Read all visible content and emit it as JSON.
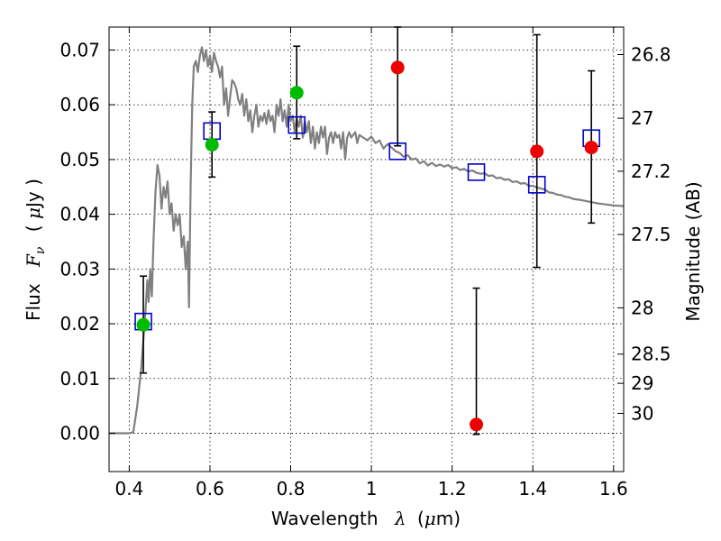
{
  "chart_data": {
    "type": "scatter",
    "xlabel": {
      "text": "Wavelength",
      "symbol": "λ",
      "unit_prefix": "(",
      "unit_greek": "μ",
      "unit_rest": "m)"
    },
    "ylabel_left": {
      "text": "Flux",
      "symbol": "F",
      "subscript": "ν",
      "unit_prefix": "( ",
      "unit_greek": "μ",
      "unit_rest": "Jy )"
    },
    "ylabel_right": "Magnitude (AB)",
    "xlim": [
      0.35,
      1.625
    ],
    "ylim": [
      -0.007,
      0.0742
    ],
    "x_ticks": [
      {
        "value": 0.4,
        "label": "0.4"
      },
      {
        "value": 0.6,
        "label": "0.6"
      },
      {
        "value": 0.8,
        "label": "0.8"
      },
      {
        "value": 1.0,
        "label": "1"
      },
      {
        "value": 1.2,
        "label": "1.2"
      },
      {
        "value": 1.4,
        "label": "1.4"
      },
      {
        "value": 1.6,
        "label": "1.6"
      }
    ],
    "y_ticks": [
      {
        "value": 0.0,
        "label": "0.00"
      },
      {
        "value": 0.01,
        "label": "0.01"
      },
      {
        "value": 0.02,
        "label": "0.02"
      },
      {
        "value": 0.03,
        "label": "0.03"
      },
      {
        "value": 0.04,
        "label": "0.04"
      },
      {
        "value": 0.05,
        "label": "0.05"
      },
      {
        "value": 0.06,
        "label": "0.06"
      },
      {
        "value": 0.07,
        "label": "0.07"
      }
    ],
    "right_ticks": [
      {
        "value": 26.8,
        "label": "26.8"
      },
      {
        "value": 27.0,
        "label": "27"
      },
      {
        "value": 27.2,
        "label": "27.2"
      },
      {
        "value": 27.5,
        "label": "27.5"
      },
      {
        "value": 28.0,
        "label": "28"
      },
      {
        "value": 28.5,
        "label": "28.5"
      },
      {
        "value": 29.0,
        "label": "29"
      },
      {
        "value": 30.0,
        "label": "30"
      }
    ],
    "grid": true,
    "colors": {
      "model": "#808080",
      "detected": "#00bb00",
      "undetected": "#ee0000",
      "model_photometry": "#0000cc",
      "error_bar": "#000000"
    },
    "model_spectrum": [
      [
        0.35,
        0.0
      ],
      [
        0.4,
        0.0
      ],
      [
        0.41,
        0.0002
      ],
      [
        0.42,
        0.005
      ],
      [
        0.43,
        0.012
      ],
      [
        0.44,
        0.022
      ],
      [
        0.445,
        0.028
      ],
      [
        0.448,
        0.024
      ],
      [
        0.452,
        0.03
      ],
      [
        0.456,
        0.025
      ],
      [
        0.46,
        0.035
      ],
      [
        0.465,
        0.044
      ],
      [
        0.47,
        0.049
      ],
      [
        0.475,
        0.047
      ],
      [
        0.48,
        0.041
      ],
      [
        0.485,
        0.045
      ],
      [
        0.49,
        0.043
      ],
      [
        0.495,
        0.046
      ],
      [
        0.5,
        0.04
      ],
      [
        0.505,
        0.042
      ],
      [
        0.51,
        0.037
      ],
      [
        0.515,
        0.04
      ],
      [
        0.52,
        0.038
      ],
      [
        0.525,
        0.04
      ],
      [
        0.53,
        0.034
      ],
      [
        0.535,
        0.036
      ],
      [
        0.54,
        0.03
      ],
      [
        0.545,
        0.035
      ],
      [
        0.548,
        0.023
      ],
      [
        0.552,
        0.045
      ],
      [
        0.556,
        0.06
      ],
      [
        0.56,
        0.067
      ],
      [
        0.565,
        0.068
      ],
      [
        0.57,
        0.066
      ],
      [
        0.575,
        0.069
      ],
      [
        0.58,
        0.0705
      ],
      [
        0.585,
        0.068
      ],
      [
        0.59,
        0.07
      ],
      [
        0.595,
        0.067
      ],
      [
        0.6,
        0.069
      ],
      [
        0.605,
        0.066
      ],
      [
        0.61,
        0.0695
      ],
      [
        0.615,
        0.068
      ],
      [
        0.62,
        0.067
      ],
      [
        0.625,
        0.065
      ],
      [
        0.63,
        0.067
      ],
      [
        0.635,
        0.06
      ],
      [
        0.64,
        0.063
      ],
      [
        0.645,
        0.058
      ],
      [
        0.65,
        0.0615
      ],
      [
        0.655,
        0.0645
      ],
      [
        0.66,
        0.064
      ],
      [
        0.665,
        0.063
      ],
      [
        0.67,
        0.061
      ],
      [
        0.675,
        0.06
      ],
      [
        0.68,
        0.062
      ],
      [
        0.685,
        0.058
      ],
      [
        0.69,
        0.061
      ],
      [
        0.695,
        0.057
      ],
      [
        0.7,
        0.059
      ],
      [
        0.705,
        0.055
      ],
      [
        0.71,
        0.058
      ],
      [
        0.715,
        0.06
      ],
      [
        0.72,
        0.056
      ],
      [
        0.725,
        0.058
      ],
      [
        0.73,
        0.057
      ],
      [
        0.735,
        0.0585
      ],
      [
        0.74,
        0.0565
      ],
      [
        0.745,
        0.059
      ],
      [
        0.75,
        0.057
      ],
      [
        0.755,
        0.058
      ],
      [
        0.76,
        0.055
      ],
      [
        0.765,
        0.06
      ],
      [
        0.77,
        0.058
      ],
      [
        0.775,
        0.061
      ],
      [
        0.78,
        0.057
      ],
      [
        0.785,
        0.059
      ],
      [
        0.79,
        0.056
      ],
      [
        0.795,
        0.06
      ],
      [
        0.8,
        0.057
      ],
      [
        0.805,
        0.058
      ],
      [
        0.81,
        0.055
      ],
      [
        0.815,
        0.0575
      ],
      [
        0.82,
        0.056
      ],
      [
        0.825,
        0.058
      ],
      [
        0.83,
        0.054
      ],
      [
        0.835,
        0.057
      ],
      [
        0.84,
        0.055
      ],
      [
        0.845,
        0.057
      ],
      [
        0.85,
        0.053
      ],
      [
        0.855,
        0.056
      ],
      [
        0.86,
        0.052
      ],
      [
        0.865,
        0.055
      ],
      [
        0.87,
        0.053
      ],
      [
        0.875,
        0.056
      ],
      [
        0.88,
        0.054
      ],
      [
        0.885,
        0.056
      ],
      [
        0.89,
        0.051
      ],
      [
        0.895,
        0.054
      ],
      [
        0.9,
        0.055
      ],
      [
        0.905,
        0.053
      ],
      [
        0.91,
        0.055
      ],
      [
        0.915,
        0.054
      ],
      [
        0.92,
        0.0545
      ],
      [
        0.925,
        0.052
      ],
      [
        0.93,
        0.055
      ],
      [
        0.935,
        0.05
      ],
      [
        0.94,
        0.054
      ],
      [
        0.945,
        0.055
      ],
      [
        0.95,
        0.054
      ],
      [
        0.955,
        0.0545
      ],
      [
        0.96,
        0.055
      ],
      [
        0.965,
        0.053
      ],
      [
        0.97,
        0.0545
      ],
      [
        0.98,
        0.054
      ],
      [
        0.99,
        0.0535
      ],
      [
        1.0,
        0.0542
      ],
      [
        1.01,
        0.053
      ],
      [
        1.02,
        0.0535
      ],
      [
        1.03,
        0.052
      ],
      [
        1.04,
        0.0528
      ],
      [
        1.05,
        0.0522
      ],
      [
        1.06,
        0.0515
      ],
      [
        1.07,
        0.0512
      ],
      [
        1.08,
        0.0505
      ],
      [
        1.09,
        0.0508
      ],
      [
        1.1,
        0.05
      ],
      [
        1.11,
        0.0502
      ],
      [
        1.12,
        0.0493
      ],
      [
        1.13,
        0.0497
      ],
      [
        1.14,
        0.0489
      ],
      [
        1.15,
        0.0494
      ],
      [
        1.16,
        0.0488
      ],
      [
        1.17,
        0.0491
      ],
      [
        1.18,
        0.0487
      ],
      [
        1.19,
        0.049
      ],
      [
        1.2,
        0.0484
      ],
      [
        1.21,
        0.0486
      ],
      [
        1.22,
        0.0481
      ],
      [
        1.23,
        0.0483
      ],
      [
        1.24,
        0.0478
      ],
      [
        1.25,
        0.048
      ],
      [
        1.26,
        0.0476
      ],
      [
        1.27,
        0.0474
      ],
      [
        1.28,
        0.0475
      ],
      [
        1.29,
        0.047
      ],
      [
        1.3,
        0.0471
      ],
      [
        1.31,
        0.0466
      ],
      [
        1.32,
        0.0467
      ],
      [
        1.33,
        0.0463
      ],
      [
        1.34,
        0.0464
      ],
      [
        1.35,
        0.0459
      ],
      [
        1.36,
        0.046
      ],
      [
        1.37,
        0.0456
      ],
      [
        1.38,
        0.0457
      ],
      [
        1.39,
        0.0452
      ],
      [
        1.4,
        0.0452
      ],
      [
        1.41,
        0.0449
      ],
      [
        1.42,
        0.0447
      ],
      [
        1.43,
        0.0445
      ],
      [
        1.44,
        0.044
      ],
      [
        1.45,
        0.0439
      ],
      [
        1.46,
        0.0436
      ],
      [
        1.47,
        0.0435
      ],
      [
        1.48,
        0.0432
      ],
      [
        1.49,
        0.0431
      ],
      [
        1.5,
        0.0428
      ],
      [
        1.52,
        0.0426
      ],
      [
        1.54,
        0.0423
      ],
      [
        1.56,
        0.042
      ],
      [
        1.58,
        0.0418
      ],
      [
        1.6,
        0.0416
      ],
      [
        1.625,
        0.0415
      ]
    ],
    "series": [
      {
        "kind": "detected",
        "points": [
          {
            "x": 0.435,
            "y": 0.0198,
            "err_low": 0.011,
            "err_high": 0.0287
          },
          {
            "x": 0.605,
            "y": 0.0527,
            "err_low": 0.0468,
            "err_high": 0.0587
          },
          {
            "x": 0.815,
            "y": 0.0622,
            "err_low": 0.0538,
            "err_high": 0.0707
          }
        ]
      },
      {
        "kind": "undetected",
        "points": [
          {
            "x": 1.065,
            "y": 0.0668,
            "err_low": 0.0525,
            "err_high": 0.0742
          },
          {
            "x": 1.26,
            "y": 0.0016,
            "err_low": -0.0002,
            "err_high": 0.0265
          },
          {
            "x": 1.41,
            "y": 0.0515,
            "err_low": 0.0303,
            "err_high": 0.0728
          },
          {
            "x": 1.545,
            "y": 0.0522,
            "err_low": 0.0384,
            "err_high": 0.0662
          }
        ]
      },
      {
        "kind": "model_photometry",
        "points": [
          {
            "x": 0.435,
            "y": 0.0204
          },
          {
            "x": 0.605,
            "y": 0.0552
          },
          {
            "x": 0.815,
            "y": 0.0563
          },
          {
            "x": 1.065,
            "y": 0.0515
          },
          {
            "x": 1.26,
            "y": 0.0477
          },
          {
            "x": 1.41,
            "y": 0.0454
          },
          {
            "x": 1.545,
            "y": 0.0539
          }
        ]
      }
    ]
  }
}
